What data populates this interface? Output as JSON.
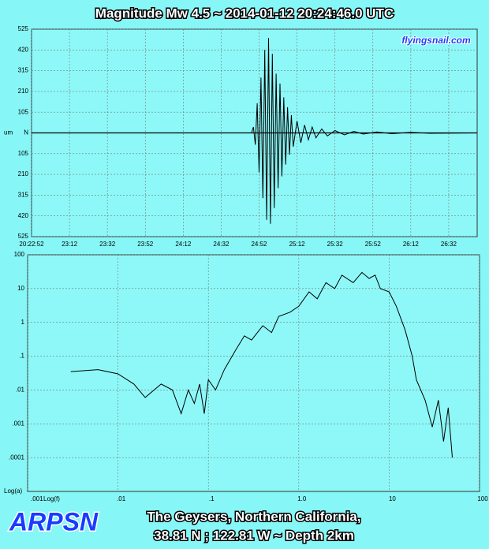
{
  "chart_data": [
    {
      "type": "line",
      "title": "Magnitude  Mw 4.5  ~  2014-01-12 20:24:46.0 UTC",
      "annotations": [
        "flyingsnail.com"
      ],
      "ylabel": "um",
      "color": "#000000",
      "grid": true,
      "xlim": [
        0,
        235
      ],
      "xticks": [
        {
          "value": 0,
          "label": "20:22:52"
        },
        {
          "value": 20,
          "label": "23:12"
        },
        {
          "value": 40,
          "label": "23:32"
        },
        {
          "value": 60,
          "label": "23:52"
        },
        {
          "value": 80,
          "label": "24:12"
        },
        {
          "value": 100,
          "label": "24:32"
        },
        {
          "value": 120,
          "label": "24:52"
        },
        {
          "value": 140,
          "label": "25:12"
        },
        {
          "value": 160,
          "label": "25:32"
        },
        {
          "value": 180,
          "label": "25:52"
        },
        {
          "value": 200,
          "label": "26:12"
        },
        {
          "value": 220,
          "label": "26:32"
        }
      ],
      "ylim": [
        -525,
        525
      ],
      "yticks": [
        525,
        420,
        315,
        210,
        105,
        {
          "value": 0,
          "label": "N"
        },
        {
          "value": -105,
          "label": "105"
        },
        {
          "value": -210,
          "label": "210"
        },
        {
          "value": -315,
          "label": "315"
        },
        {
          "value": -420,
          "label": "420"
        },
        {
          "value": -525,
          "label": "525"
        }
      ],
      "x": [
        0,
        116,
        117,
        118,
        119,
        120,
        121,
        122,
        123,
        124,
        125,
        126,
        127,
        128,
        129,
        130,
        131,
        132,
        133,
        134,
        135,
        136,
        137,
        138,
        140,
        142,
        144,
        146,
        148,
        150,
        153,
        156,
        160,
        165,
        170,
        175,
        182,
        190,
        200,
        210,
        235
      ],
      "values": [
        0,
        0,
        30,
        -60,
        150,
        -200,
        280,
        -330,
        420,
        -440,
        480,
        -460,
        400,
        -380,
        300,
        -280,
        250,
        -220,
        180,
        -160,
        130,
        -110,
        90,
        -70,
        60,
        -50,
        40,
        -35,
        30,
        -25,
        20,
        -15,
        12,
        -10,
        8,
        -6,
        5,
        -4,
        3,
        -2,
        0
      ]
    },
    {
      "type": "line",
      "log_scale": true,
      "annotations": [
        "ARPSN",
        "The Geysers, Northern California,",
        "38.81 N ; 122.81 W ~ Depth 2km"
      ],
      "xlabel": "Log(f)",
      "ylabel": "Log(a)",
      "color": "#000000",
      "grid": true,
      "xlim": [
        0.001,
        100
      ],
      "xticks": [
        {
          "value": 0.001,
          "label": ".001"
        },
        {
          "value": 0.01,
          "label": ".01"
        },
        {
          "value": 0.1,
          "label": ".1"
        },
        {
          "value": 1,
          "label": "1.0"
        },
        10,
        100
      ],
      "ylim": [
        1e-05,
        100
      ],
      "yticks": [
        100,
        10,
        1,
        {
          "value": 0.1,
          "label": ".1"
        },
        {
          "value": 0.01,
          "label": ".01"
        },
        {
          "value": 0.001,
          "label": ".001"
        },
        {
          "value": 0.0001,
          "label": ".0001"
        }
      ],
      "x": [
        0.003,
        0.006,
        0.01,
        0.015,
        0.02,
        0.03,
        0.04,
        0.05,
        0.06,
        0.07,
        0.08,
        0.09,
        0.1,
        0.12,
        0.15,
        0.2,
        0.25,
        0.3,
        0.4,
        0.5,
        0.6,
        0.8,
        1,
        1.3,
        1.6,
        2,
        2.5,
        3,
        4,
        5,
        6,
        7,
        8,
        10,
        12,
        15,
        18,
        20,
        25,
        30,
        35,
        40,
        45,
        50
      ],
      "values": [
        0.035,
        0.04,
        0.03,
        0.015,
        0.006,
        0.015,
        0.01,
        0.002,
        0.01,
        0.004,
        0.015,
        0.002,
        0.02,
        0.01,
        0.04,
        0.15,
        0.4,
        0.3,
        0.8,
        0.5,
        1.5,
        2,
        3,
        8,
        5,
        15,
        10,
        25,
        15,
        30,
        20,
        25,
        10,
        8,
        3,
        0.6,
        0.1,
        0.02,
        0.005,
        0.0008,
        0.005,
        0.0003,
        0.003,
        0.0001
      ]
    }
  ]
}
